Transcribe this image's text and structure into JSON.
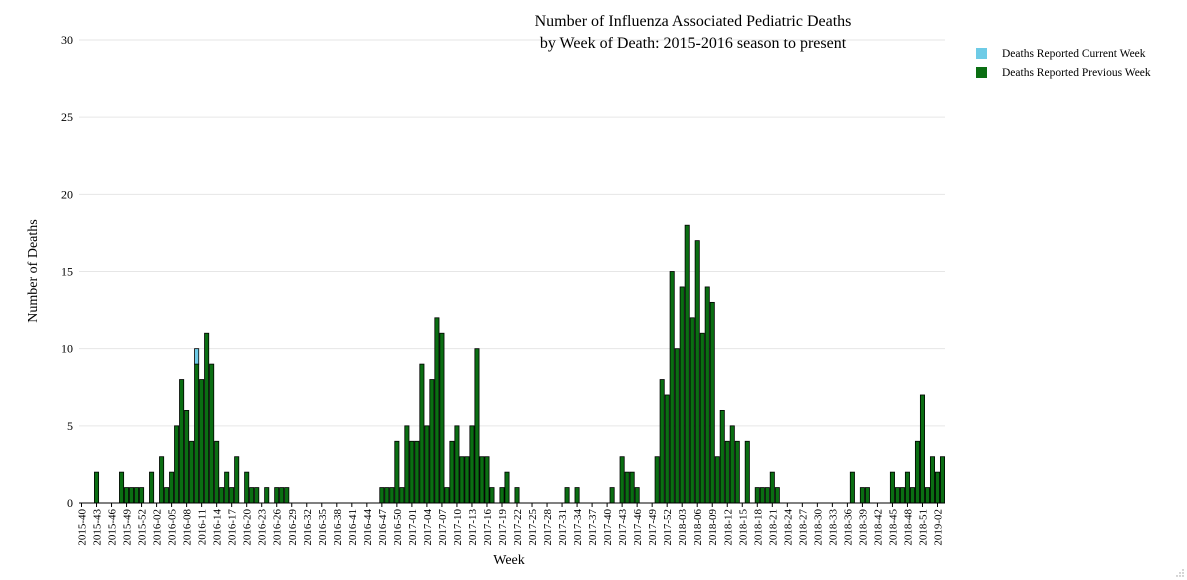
{
  "chart_data": {
    "type": "bar",
    "stacked": true,
    "title": "Number of Influenza Associated Pediatric Deaths",
    "subtitle": "by Week of Death: 2015-2016 season to present",
    "xlabel": "Week",
    "ylabel": "Number of Deaths",
    "ylim": [
      0,
      30
    ],
    "yticks": [
      0,
      5,
      10,
      15,
      20,
      25,
      30
    ],
    "grid": true,
    "legend_position": "top-right",
    "x_start": {
      "year": 2015,
      "week": 40
    },
    "week_count": 173,
    "x_tick_every": 3,
    "series": [
      {
        "name": "Deaths Reported Current Week",
        "color": "#6ecbe6",
        "values": [
          0,
          0,
          0,
          0,
          0,
          0,
          0,
          0,
          0,
          0,
          0,
          0,
          0,
          0,
          0,
          0,
          0,
          0,
          0,
          0,
          0,
          0,
          0,
          1,
          0,
          0,
          0,
          0,
          0,
          0,
          0,
          0,
          0,
          0,
          0,
          0,
          0,
          0,
          0,
          0,
          0,
          0,
          0,
          0,
          0,
          0,
          0,
          0,
          0,
          0,
          0,
          0,
          0,
          0,
          0,
          0,
          0,
          0,
          0,
          0,
          0,
          0,
          0,
          0,
          0,
          0,
          0,
          0,
          0,
          0,
          0,
          0,
          0,
          0,
          0,
          0,
          0,
          0,
          0,
          0,
          0,
          0,
          0,
          0,
          0,
          0,
          0,
          0,
          0,
          0,
          0,
          0,
          0,
          0,
          0,
          0,
          0,
          0,
          0,
          0,
          0,
          0,
          0,
          0,
          0,
          0,
          0,
          0,
          0,
          0,
          0,
          0,
          0,
          0,
          0,
          0,
          0,
          0,
          0,
          0,
          0,
          0,
          0,
          0,
          0,
          0,
          0,
          0,
          0,
          0,
          0,
          0,
          0,
          0,
          0,
          0,
          0,
          0,
          0,
          0,
          0,
          0,
          0,
          0,
          0,
          0,
          0,
          0,
          0,
          0,
          0,
          0,
          0,
          0,
          0,
          0,
          0,
          0,
          0,
          0,
          0,
          0,
          0,
          0,
          0,
          0,
          0,
          0,
          0,
          0,
          0,
          0,
          0
        ]
      },
      {
        "name": "Deaths Reported Previous Week",
        "color": "#0a6e12",
        "values": [
          0,
          0,
          0,
          2,
          0,
          0,
          0,
          0,
          2,
          1,
          1,
          1,
          1,
          0,
          2,
          0,
          3,
          1,
          2,
          5,
          8,
          6,
          4,
          9,
          8,
          11,
          9,
          4,
          1,
          2,
          1,
          3,
          0,
          2,
          1,
          1,
          0,
          1,
          0,
          1,
          1,
          1,
          0,
          0,
          0,
          0,
          0,
          0,
          0,
          0,
          0,
          0,
          0,
          0,
          0,
          0,
          0,
          0,
          0,
          0,
          1,
          1,
          1,
          4,
          1,
          5,
          4,
          4,
          9,
          5,
          8,
          12,
          11,
          1,
          4,
          5,
          3,
          3,
          5,
          10,
          3,
          3,
          1,
          0,
          1,
          2,
          0,
          1,
          0,
          0,
          0,
          0,
          0,
          0,
          0,
          0,
          0,
          1,
          0,
          1,
          0,
          0,
          0,
          0,
          0,
          0,
          1,
          0,
          3,
          2,
          2,
          1,
          0,
          0,
          0,
          3,
          8,
          7,
          15,
          10,
          14,
          18,
          12,
          17,
          11,
          14,
          13,
          3,
          6,
          4,
          5,
          4,
          0,
          4,
          0,
          1,
          1,
          1,
          2,
          1,
          0,
          0,
          0,
          0,
          0,
          0,
          0,
          0,
          0,
          0,
          0,
          0,
          0,
          0,
          2,
          0,
          1,
          1,
          0,
          0,
          0,
          0,
          2,
          1,
          1,
          2,
          1,
          4,
          7,
          1,
          3,
          2,
          3
        ]
      }
    ]
  }
}
